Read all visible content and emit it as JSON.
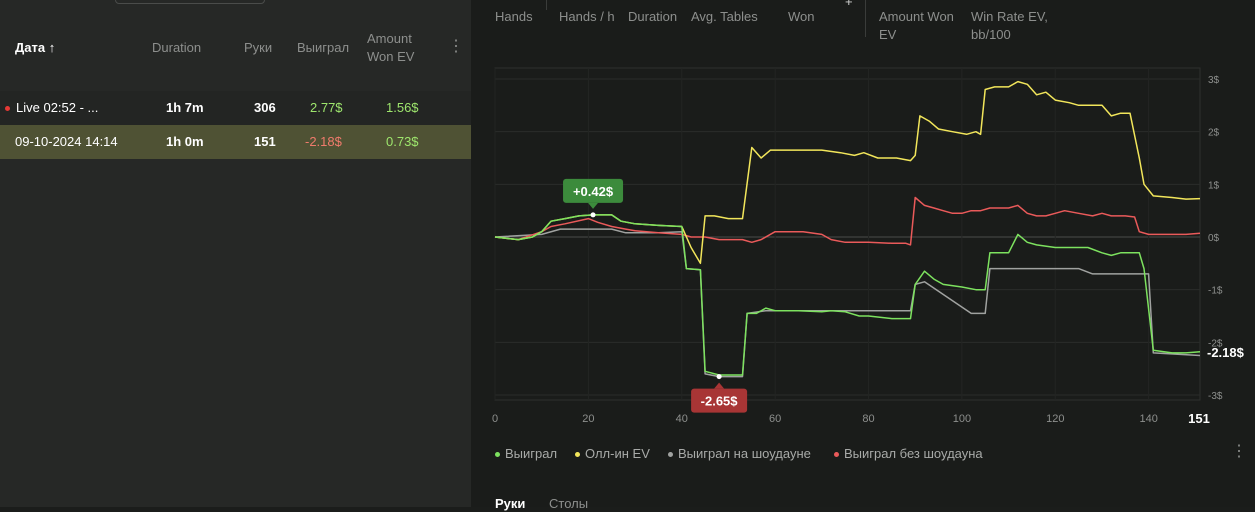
{
  "table": {
    "headers": {
      "date": "Дата",
      "sort_arrow": "↑",
      "duration": "Duration",
      "hands": "Руки",
      "won": "Выиграл",
      "amount_won_ev_1": "Amount",
      "amount_won_ev_2": "Won EV"
    },
    "rows": [
      {
        "date": "Live 02:52 - ...",
        "duration": "1h 7m",
        "hands": "306",
        "won": "2.77$",
        "ev": "1.56$",
        "live": true
      },
      {
        "date": "09-10-2024 14:14",
        "duration": "1h 0m",
        "hands": "151",
        "won": "-2.18$",
        "ev": "0.73$",
        "selected": true
      }
    ]
  },
  "stats": {
    "hands_label": "Hands",
    "hands_per_hour_label": "Hands / h",
    "duration_label": "Duration",
    "avg_tables_label": "Avg. Tables",
    "won_label": "Won",
    "amount_won_ev_label_1": "Amount Won",
    "amount_won_ev_label_2": "EV",
    "win_rate_ev_label_1": "Win Rate EV,",
    "win_rate_ev_label_2": "bb/100",
    "plus_glyph": "+"
  },
  "chart_data": {
    "type": "line",
    "x_range": [
      0,
      151
    ],
    "x_ticks": [
      "0",
      "20",
      "40",
      "60",
      "80",
      "100",
      "120",
      "140"
    ],
    "x_end_label": "151",
    "y_range": [
      -3,
      3
    ],
    "y_ticks": [
      "3$",
      "2$",
      "1$",
      "0$",
      "-1$",
      "-2$",
      "-3$"
    ],
    "end_label": "-2.18$",
    "max_label": "+0.42$",
    "min_label": "-2.65$",
    "max_point": {
      "x": 21,
      "y": 0.42
    },
    "min_point": {
      "x": 48,
      "y": -2.65
    },
    "grid": true,
    "legend_position": "bottom-left",
    "series": [
      {
        "name": "Выиграл",
        "color": "#7de25f",
        "points": [
          [
            0,
            0
          ],
          [
            5,
            -0.05
          ],
          [
            8,
            0
          ],
          [
            10,
            0.1
          ],
          [
            12,
            0.3
          ],
          [
            15,
            0.35
          ],
          [
            18,
            0.4
          ],
          [
            21,
            0.42
          ],
          [
            25,
            0.42
          ],
          [
            27,
            0.3
          ],
          [
            30,
            0.25
          ],
          [
            35,
            0.22
          ],
          [
            40,
            0.2
          ],
          [
            41,
            -0.6
          ],
          [
            44,
            -0.62
          ],
          [
            45,
            -2.55
          ],
          [
            48,
            -2.62
          ],
          [
            50,
            -2.62
          ],
          [
            53,
            -2.62
          ],
          [
            54,
            -1.45
          ],
          [
            56,
            -1.45
          ],
          [
            58,
            -1.35
          ],
          [
            60,
            -1.4
          ],
          [
            65,
            -1.4
          ],
          [
            70,
            -1.42
          ],
          [
            72,
            -1.4
          ],
          [
            75,
            -1.42
          ],
          [
            78,
            -1.5
          ],
          [
            80,
            -1.5
          ],
          [
            85,
            -1.55
          ],
          [
            89,
            -1.55
          ],
          [
            90,
            -0.9
          ],
          [
            92,
            -0.65
          ],
          [
            94,
            -0.8
          ],
          [
            96,
            -0.9
          ],
          [
            100,
            -0.95
          ],
          [
            103,
            -1.0
          ],
          [
            105,
            -1.0
          ],
          [
            106,
            -0.3
          ],
          [
            110,
            -0.3
          ],
          [
            112,
            0.05
          ],
          [
            114,
            -0.1
          ],
          [
            116,
            -0.15
          ],
          [
            120,
            -0.2
          ],
          [
            125,
            -0.2
          ],
          [
            127,
            -0.2
          ],
          [
            130,
            -0.3
          ],
          [
            132,
            -0.35
          ],
          [
            134,
            -0.3
          ],
          [
            138,
            -0.3
          ],
          [
            139,
            -0.6
          ],
          [
            141,
            -2.15
          ],
          [
            145,
            -2.2
          ],
          [
            148,
            -2.2
          ],
          [
            151,
            -2.18
          ]
        ]
      },
      {
        "name": "Олл-ин EV",
        "color": "#f2e65b",
        "points": [
          [
            0,
            0
          ],
          [
            5,
            -0.05
          ],
          [
            8,
            0
          ],
          [
            10,
            0.1
          ],
          [
            12,
            0.3
          ],
          [
            15,
            0.35
          ],
          [
            18,
            0.4
          ],
          [
            21,
            0.42
          ],
          [
            25,
            0.42
          ],
          [
            27,
            0.3
          ],
          [
            30,
            0.25
          ],
          [
            35,
            0.22
          ],
          [
            40,
            0.2
          ],
          [
            42,
            -0.2
          ],
          [
            44,
            -0.5
          ],
          [
            45,
            0.4
          ],
          [
            47,
            0.4
          ],
          [
            50,
            0.35
          ],
          [
            53,
            0.35
          ],
          [
            55,
            1.7
          ],
          [
            57,
            1.5
          ],
          [
            59,
            1.65
          ],
          [
            62,
            1.65
          ],
          [
            65,
            1.65
          ],
          [
            68,
            1.65
          ],
          [
            70,
            1.65
          ],
          [
            74,
            1.6
          ],
          [
            77,
            1.55
          ],
          [
            79,
            1.6
          ],
          [
            82,
            1.5
          ],
          [
            86,
            1.5
          ],
          [
            89,
            1.45
          ],
          [
            90,
            1.55
          ],
          [
            91,
            2.3
          ],
          [
            93,
            2.2
          ],
          [
            95,
            2.05
          ],
          [
            98,
            2.0
          ],
          [
            101,
            1.95
          ],
          [
            103,
            2.0
          ],
          [
            104,
            1.95
          ],
          [
            105,
            2.8
          ],
          [
            107,
            2.85
          ],
          [
            110,
            2.85
          ],
          [
            112,
            2.95
          ],
          [
            114,
            2.9
          ],
          [
            116,
            2.7
          ],
          [
            118,
            2.75
          ],
          [
            120,
            2.6
          ],
          [
            123,
            2.55
          ],
          [
            125,
            2.5
          ],
          [
            127,
            2.5
          ],
          [
            130,
            2.5
          ],
          [
            132,
            2.3
          ],
          [
            134,
            2.35
          ],
          [
            136,
            2.35
          ],
          [
            138,
            1.5
          ],
          [
            139,
            1.0
          ],
          [
            141,
            0.78
          ],
          [
            145,
            0.75
          ],
          [
            148,
            0.72
          ],
          [
            151,
            0.73
          ]
        ]
      },
      {
        "name": "Выиграл на шоудауне",
        "color": "#a0a2a0",
        "points": [
          [
            0,
            0
          ],
          [
            10,
            0.05
          ],
          [
            14,
            0.15
          ],
          [
            20,
            0.15
          ],
          [
            25,
            0.15
          ],
          [
            28,
            0.08
          ],
          [
            35,
            0.08
          ],
          [
            40,
            0.1
          ],
          [
            41,
            -0.6
          ],
          [
            44,
            -0.62
          ],
          [
            45,
            -2.6
          ],
          [
            48,
            -2.65
          ],
          [
            53,
            -2.65
          ],
          [
            54,
            -1.45
          ],
          [
            58,
            -1.4
          ],
          [
            75,
            -1.4
          ],
          [
            89,
            -1.4
          ],
          [
            90,
            -0.9
          ],
          [
            92,
            -0.85
          ],
          [
            102,
            -1.45
          ],
          [
            105,
            -1.45
          ],
          [
            106,
            -0.6
          ],
          [
            112,
            -0.6
          ],
          [
            125,
            -0.6
          ],
          [
            128,
            -0.7
          ],
          [
            140,
            -0.7
          ],
          [
            141,
            -2.2
          ],
          [
            151,
            -2.25
          ]
        ]
      },
      {
        "name": "Выиграл без шоудауна",
        "color": "#ea5a5a",
        "points": [
          [
            0,
            0
          ],
          [
            5,
            -0.05
          ],
          [
            10,
            0.1
          ],
          [
            12,
            0.2
          ],
          [
            15,
            0.25
          ],
          [
            20,
            0.35
          ],
          [
            22,
            0.28
          ],
          [
            25,
            0.2
          ],
          [
            28,
            0.15
          ],
          [
            30,
            0.12
          ],
          [
            35,
            0.08
          ],
          [
            40,
            0.05
          ],
          [
            42,
            0.0
          ],
          [
            45,
            0.0
          ],
          [
            48,
            -0.05
          ],
          [
            50,
            -0.05
          ],
          [
            53,
            -0.05
          ],
          [
            55,
            -0.1
          ],
          [
            57,
            -0.05
          ],
          [
            60,
            0.1
          ],
          [
            63,
            0.1
          ],
          [
            66,
            0.1
          ],
          [
            70,
            0.05
          ],
          [
            72,
            -0.05
          ],
          [
            75,
            -0.1
          ],
          [
            80,
            -0.1
          ],
          [
            85,
            -0.12
          ],
          [
            88,
            -0.12
          ],
          [
            89,
            -0.15
          ],
          [
            90,
            0.75
          ],
          [
            92,
            0.6
          ],
          [
            94,
            0.55
          ],
          [
            96,
            0.5
          ],
          [
            98,
            0.45
          ],
          [
            100,
            0.45
          ],
          [
            102,
            0.5
          ],
          [
            104,
            0.5
          ],
          [
            106,
            0.55
          ],
          [
            108,
            0.55
          ],
          [
            110,
            0.55
          ],
          [
            112,
            0.6
          ],
          [
            114,
            0.45
          ],
          [
            116,
            0.4
          ],
          [
            118,
            0.4
          ],
          [
            120,
            0.45
          ],
          [
            122,
            0.5
          ],
          [
            125,
            0.45
          ],
          [
            128,
            0.4
          ],
          [
            130,
            0.45
          ],
          [
            132,
            0.4
          ],
          [
            135,
            0.4
          ],
          [
            137,
            0.38
          ],
          [
            138,
            0.1
          ],
          [
            140,
            0.05
          ],
          [
            145,
            0.05
          ],
          [
            148,
            0.05
          ],
          [
            151,
            0.07
          ]
        ]
      }
    ]
  },
  "legend": [
    {
      "label": "Выиграл",
      "color": "#7de25f"
    },
    {
      "label": "Олл-ин EV",
      "color": "#f2e65b"
    },
    {
      "label": "Выиграл на шоудауне",
      "color": "#a0a2a0"
    },
    {
      "label": "Выиграл без шоудауна",
      "color": "#ea5a5a"
    }
  ],
  "tabs": {
    "hands": "Руки",
    "tables": "Столы"
  },
  "icons": {
    "menu": "vertical-dots-icon",
    "live": "live-dot-icon"
  },
  "colors": {
    "positive": "#9ee66d",
    "negative": "#f07b6c",
    "label_green": "#3c8b3c",
    "label_red": "#a83535"
  }
}
